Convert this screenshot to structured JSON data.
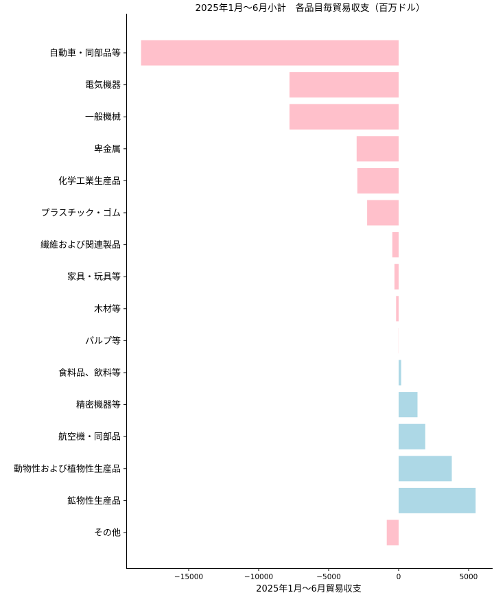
{
  "chart_data": {
    "type": "bar",
    "orientation": "horizontal",
    "title": "2025年1月～6月小計　各品目毎貿易収支（百万ドル）",
    "xlabel": "2025年1月～6月貿易収支",
    "ylabel": "",
    "xlim": [
      -18800,
      6800
    ],
    "xticks": [
      -15000,
      -10000,
      -5000,
      0,
      5000
    ],
    "xtick_labels": [
      "−15000",
      "−10000",
      "−5000",
      "0",
      "5000"
    ],
    "grid": false,
    "legend": "none",
    "colors": {
      "negative": "#ffc0cb",
      "positive": "#add8e6"
    },
    "categories": [
      "自動車・同部品等",
      "電気機器",
      "一般機械",
      "卑金属",
      "化学工業生産品",
      "プラスチック・ゴム",
      "繊維および関連製品",
      "家具・玩具等",
      "木材等",
      "パルプ等",
      "食料品、飲料等",
      "精密機器等",
      "航空機・同部品",
      "動物性および植物性生産品",
      "鉱物性生産品",
      "その他"
    ],
    "values": [
      -18400,
      -7800,
      -7800,
      -3000,
      -2950,
      -2250,
      -450,
      -300,
      -180,
      -10,
      180,
      1350,
      1900,
      3800,
      5500,
      -850
    ]
  }
}
